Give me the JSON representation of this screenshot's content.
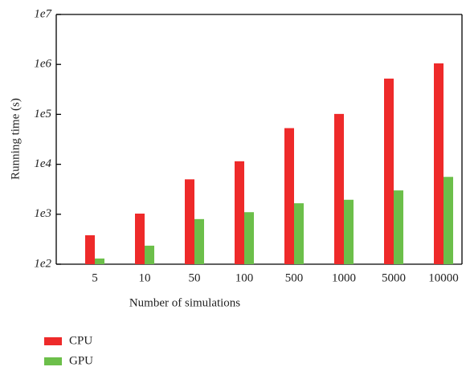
{
  "chart_data": {
    "type": "bar",
    "x_label": "Number of simulations",
    "y_label": "Running time (s)",
    "categories": [
      "5",
      "10",
      "50",
      "100",
      "500",
      "1000",
      "5000",
      "10000"
    ],
    "series": [
      {
        "name": "CPU",
        "color": "#ee2a2a",
        "values": [
          380,
          1030,
          5000,
          11500,
          53000,
          102000,
          520000,
          1050000
        ]
      },
      {
        "name": "GPU",
        "color": "#6cbf4a",
        "values": [
          130,
          235,
          800,
          1100,
          1660,
          1950,
          3000,
          5600
        ]
      }
    ],
    "log_scale": true,
    "ylim": [
      100,
      10000000
    ],
    "yticks": [
      {
        "value": 100,
        "label": "1e2"
      },
      {
        "value": 1000,
        "label": "1e3"
      },
      {
        "value": 10000,
        "label": "1e4"
      },
      {
        "value": 100000,
        "label": "1e5"
      },
      {
        "value": 1000000,
        "label": "1e6"
      },
      {
        "value": 10000000,
        "label": "1e7"
      }
    ],
    "legend": "bottom-left"
  }
}
